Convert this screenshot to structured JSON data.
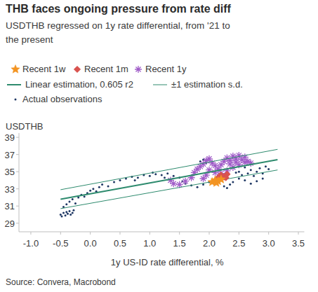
{
  "chart_data": {
    "type": "scatter",
    "title": "THB faces ongoing pressure from rate diff",
    "subtitle": "USDTHB regressed on 1y rate differential, from '21 to the present",
    "x_label": "1y US-ID rate differential, %",
    "y_label": "USDTHB",
    "source": "Source: Convera, Macrobond",
    "legend": "top",
    "grid": false,
    "xlim": [
      -1.2,
      3.6
    ],
    "ylim": [
      28,
      39.5
    ],
    "xticks": [
      {
        "value": -1,
        "label": "-1.0"
      },
      -0.5,
      {
        "value": 0,
        "label": "0.0"
      },
      0.5,
      {
        "value": 1,
        "label": "1.0"
      },
      1.5,
      {
        "value": 2,
        "label": "2.0"
      },
      2.5,
      {
        "value": 3,
        "label": "3.0"
      },
      3.5
    ],
    "yticks": [
      29,
      31,
      33,
      35,
      37,
      39
    ],
    "series": [
      {
        "name": "Recent 1w",
        "type": "scatter",
        "marker": "star",
        "color": "#f39422",
        "x": [
          2.05,
          2.1,
          2.15,
          2.2,
          2.12
        ],
        "values": [
          33.8,
          34.0,
          33.9,
          34.1,
          33.7
        ]
      },
      {
        "name": "Recent 1m",
        "type": "scatter",
        "marker": "diamond",
        "color": "#d9534f",
        "x": [
          2.15,
          2.2,
          2.25,
          2.3,
          2.18,
          2.28
        ],
        "values": [
          34.3,
          34.6,
          34.4,
          34.7,
          34.5,
          34.3
        ]
      },
      {
        "name": "Recent 1y",
        "type": "scatter",
        "marker": "asterisk",
        "color": "#a05cc8",
        "x": [
          1.35,
          1.4,
          1.5,
          1.6,
          1.7,
          1.75,
          1.8,
          1.85,
          1.9,
          1.95,
          2.0,
          2.05,
          2.1,
          2.15,
          2.2,
          2.25,
          2.3,
          2.35,
          2.4,
          2.45,
          2.5,
          2.55,
          2.6,
          2.65,
          2.7,
          2.5,
          2.4,
          2.3,
          2.2,
          2.1,
          2.0,
          1.95,
          1.9,
          2.35,
          2.6,
          2.45
        ],
        "values": [
          34.0,
          33.6,
          33.5,
          33.9,
          34.3,
          34.9,
          35.3,
          35.6,
          35.9,
          36.3,
          36.5,
          36.0,
          35.7,
          35.3,
          35.8,
          36.2,
          36.6,
          36.3,
          36.8,
          36.5,
          36.9,
          36.4,
          36.7,
          36.2,
          36.0,
          35.8,
          35.5,
          35.1,
          34.8,
          34.9,
          35.2,
          34.6,
          34.2,
          35.9,
          36.1,
          36.1
        ]
      },
      {
        "name": "Linear estimation, 0.605 r2",
        "type": "line",
        "line_style": "solid",
        "color": "#2e8b6e",
        "x": [
          -0.5,
          3.15
        ],
        "values": [
          31.8,
          36.4
        ]
      },
      {
        "name": "±1 estimation s.d.",
        "type": "line",
        "line_style": "solid",
        "color": "#2e8b6e",
        "x": [
          -0.5,
          3.15
        ],
        "values": [
          32.9,
          37.6
        ],
        "lower": [
          30.7,
          35.2
        ]
      },
      {
        "name": "Actual observations",
        "type": "scatter",
        "marker": "dot",
        "color": "#1f3864",
        "x": [
          -0.5,
          -0.48,
          -0.45,
          -0.42,
          -0.4,
          -0.38,
          -0.35,
          -0.33,
          -0.3,
          -0.28,
          -0.45,
          -0.4,
          -0.35,
          -0.3,
          -0.25,
          -0.2,
          -0.15,
          -0.1,
          -0.05,
          0.0,
          0.05,
          0.1,
          0.15,
          0.2,
          0.3,
          0.4,
          0.5,
          0.6,
          0.7,
          0.8,
          0.9,
          1.0,
          1.1,
          1.2,
          1.3,
          1.4,
          1.5,
          1.55,
          1.6,
          1.7,
          1.8,
          1.9,
          2.0,
          1.85,
          1.9,
          1.95,
          2.25,
          2.3,
          2.35,
          2.4,
          2.5,
          2.55,
          2.6,
          2.65,
          2.7,
          2.75,
          2.8,
          2.85,
          2.9,
          2.95,
          3.0,
          2.7,
          2.8,
          2.9,
          2.6,
          2.5,
          2.45,
          1.25,
          1.05,
          0.75
        ],
        "values": [
          30.0,
          29.8,
          30.2,
          29.9,
          30.3,
          30.1,
          30.4,
          30.0,
          30.2,
          30.5,
          30.9,
          31.2,
          31.5,
          31.8,
          31.3,
          32.0,
          32.3,
          32.1,
          32.5,
          32.8,
          33.0,
          32.7,
          33.2,
          33.5,
          33.3,
          33.8,
          34.0,
          34.2,
          34.4,
          34.3,
          34.6,
          34.5,
          34.7,
          34.6,
          34.8,
          34.5,
          34.3,
          33.9,
          33.6,
          33.4,
          33.2,
          33.5,
          33.8,
          36.2,
          36.4,
          36.0,
          33.3,
          33.1,
          33.5,
          33.8,
          34.2,
          34.6,
          34.0,
          34.8,
          35.2,
          34.5,
          35.0,
          35.4,
          34.8,
          35.6,
          35.3,
          33.6,
          33.9,
          34.2,
          35.5,
          35.0,
          34.9,
          34.3,
          34.9,
          34.0
        ]
      }
    ]
  }
}
